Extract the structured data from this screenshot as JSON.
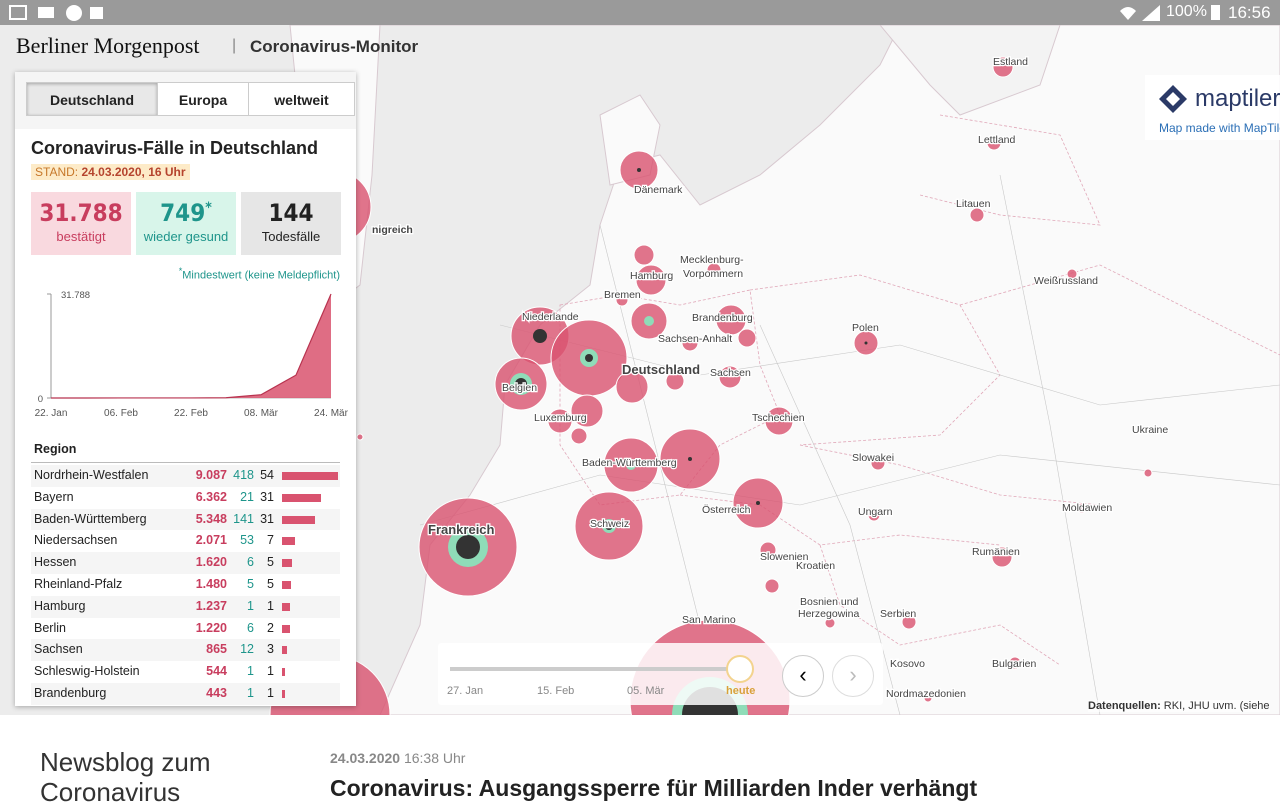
{
  "status_bar": {
    "battery": "100%",
    "time": "16:56"
  },
  "header": {
    "logo": "Berliner Morgenpost",
    "separator": "|",
    "title": "Coronavirus-Monitor"
  },
  "tabs": [
    "Deutschland",
    "Europa",
    "weltweit"
  ],
  "panel": {
    "title": "Coronavirus-Fälle in Deutschland",
    "stand_label": "STAND:",
    "stand": "24.03.2020, 16 Uhr",
    "stats": [
      {
        "value": "31.788",
        "label": "bestätigt"
      },
      {
        "value": "749",
        "star": "*",
        "label": "wieder gesund"
      },
      {
        "value": "144",
        "label": "Todesfälle"
      }
    ],
    "footnote_star": "*",
    "footnote": "Mindestwert (keine Meldepflicht)"
  },
  "chart_data": {
    "type": "area",
    "categories": [
      "22. Jan",
      null,
      "06. Feb",
      null,
      "22. Feb",
      null,
      "08. Mär",
      null,
      "24. Mär"
    ],
    "values": [
      0,
      5,
      12,
      16,
      16,
      80,
      1000,
      7000,
      31788
    ],
    "color": "#d9536f",
    "ylim": [
      0,
      31788
    ],
    "yticks": [
      0,
      {
        "value": 31788,
        "label": "31.788"
      }
    ]
  },
  "table": {
    "header": "Region",
    "rows": [
      {
        "name": "Nordrhein-Westfalen",
        "confirmed": 9087,
        "confirmed_label": "9.087",
        "recovered": "418",
        "deaths": "54"
      },
      {
        "name": "Bayern",
        "confirmed": 6362,
        "confirmed_label": "6.362",
        "recovered": "21",
        "deaths": "31"
      },
      {
        "name": "Baden-Württemberg",
        "confirmed": 5348,
        "confirmed_label": "5.348",
        "recovered": "141",
        "deaths": "31"
      },
      {
        "name": "Niedersachsen",
        "confirmed": 2071,
        "confirmed_label": "2.071",
        "recovered": "53",
        "deaths": "7"
      },
      {
        "name": "Hessen",
        "confirmed": 1620,
        "confirmed_label": "1.620",
        "recovered": "6",
        "deaths": "5"
      },
      {
        "name": "Rheinland-Pfalz",
        "confirmed": 1480,
        "confirmed_label": "1.480",
        "recovered": "5",
        "deaths": "5"
      },
      {
        "name": "Hamburg",
        "confirmed": 1237,
        "confirmed_label": "1.237",
        "recovered": "1",
        "deaths": "1"
      },
      {
        "name": "Berlin",
        "confirmed": 1220,
        "confirmed_label": "1.220",
        "recovered": "6",
        "deaths": "2"
      },
      {
        "name": "Sachsen",
        "confirmed": 865,
        "confirmed_label": "865",
        "recovered": "12",
        "deaths": "3"
      },
      {
        "name": "Schleswig-Holstein",
        "confirmed": 544,
        "confirmed_label": "544",
        "recovered": "1",
        "deaths": "1"
      },
      {
        "name": "Brandenburg",
        "confirmed": 443,
        "confirmed_label": "443",
        "recovered": "1",
        "deaths": "1"
      }
    ]
  },
  "map": {
    "labels": [
      "Estland",
      "Lettland",
      "Litauen",
      "Dänemark",
      "Mecklenburg-",
      "Vorpommern",
      "Hamburg",
      "Bremen",
      "Niederlande",
      "Brandenburg",
      "Sachsen-Anhalt",
      "Deutschland",
      "Sachsen",
      "Belgien",
      "Luxemburg",
      "Polen",
      "Weißrussland",
      "Ukraine",
      "Tschechien",
      "Baden-Württemberg",
      "Slowakei",
      "Moldawien",
      "Österreich",
      "Ungarn",
      "Frankreich",
      "Schweiz",
      "Slowenien",
      "Rumänien",
      "Kroatien",
      "Bosnien und",
      "Herzegowina",
      "San Marino",
      "Serbien",
      "Kosovo",
      "Bulgarien",
      "Nordmazedonien",
      "nigreich"
    ],
    "attribution_brand": "maptiler",
    "attribution_text": "Map made with MapTiler",
    "sources_label": "Datenquellen:",
    "sources": "RKI, JHU uvm. (siehe"
  },
  "timeline": {
    "labels": [
      "27. Jan",
      "15. Feb",
      "05. Mär",
      "heute"
    ]
  },
  "bottom": {
    "blog_title": "Newsblog zum Coronavirus",
    "date": "24.03.2020",
    "time": "16:38 Uhr",
    "headline": "Coronavirus: Ausgangssperre für Milliarden Inder verhängt"
  }
}
